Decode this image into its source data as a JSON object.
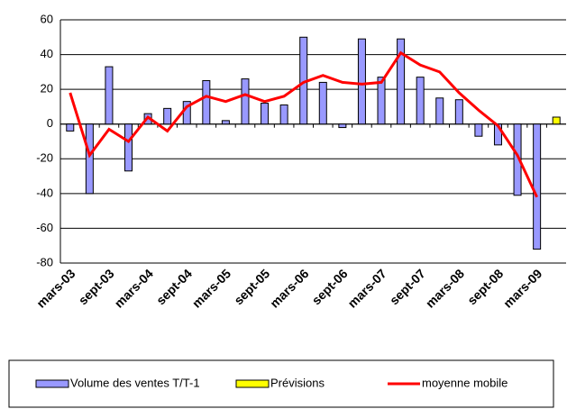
{
  "chart_data": {
    "type": "bar",
    "categories": [
      "mars-03",
      null,
      "sept-03",
      null,
      "mars-04",
      null,
      "sept-04",
      null,
      "mars-05",
      null,
      "sept-05",
      null,
      "mars-06",
      null,
      "sept-06",
      null,
      "mars-07",
      null,
      "sept-07",
      null,
      "mars-08",
      null,
      "sept-08",
      null,
      "mars-09",
      null
    ],
    "series": [
      {
        "name": "Volume des ventes T/T-1",
        "color": "#9999ff",
        "kind": "bar",
        "values": [
          -4,
          -40,
          33,
          -27,
          6,
          9,
          13,
          25,
          2,
          26,
          12,
          11,
          50,
          24,
          -2,
          49,
          27,
          49,
          27,
          15,
          14,
          -7,
          -12,
          -41,
          -72,
          null
        ]
      },
      {
        "name": "Prévisions",
        "color": "#ffff00",
        "kind": "bar",
        "values": [
          null,
          null,
          null,
          null,
          null,
          null,
          null,
          null,
          null,
          null,
          null,
          null,
          null,
          null,
          null,
          null,
          null,
          null,
          null,
          null,
          null,
          null,
          null,
          null,
          null,
          4
        ]
      },
      {
        "name": "moyenne mobile",
        "color": "#ff0000",
        "kind": "line",
        "values": [
          18,
          -18,
          -3,
          -10,
          4,
          -4,
          10,
          16,
          13,
          17,
          13,
          16,
          24,
          28,
          24,
          23,
          24,
          41,
          34,
          30,
          18,
          8,
          -1,
          -18,
          -42,
          null
        ]
      }
    ],
    "ylim": [
      -80,
      60
    ],
    "yticks": [
      -80,
      -60,
      -40,
      -20,
      0,
      20,
      40,
      60
    ],
    "grid": true,
    "legend": "bottom"
  }
}
